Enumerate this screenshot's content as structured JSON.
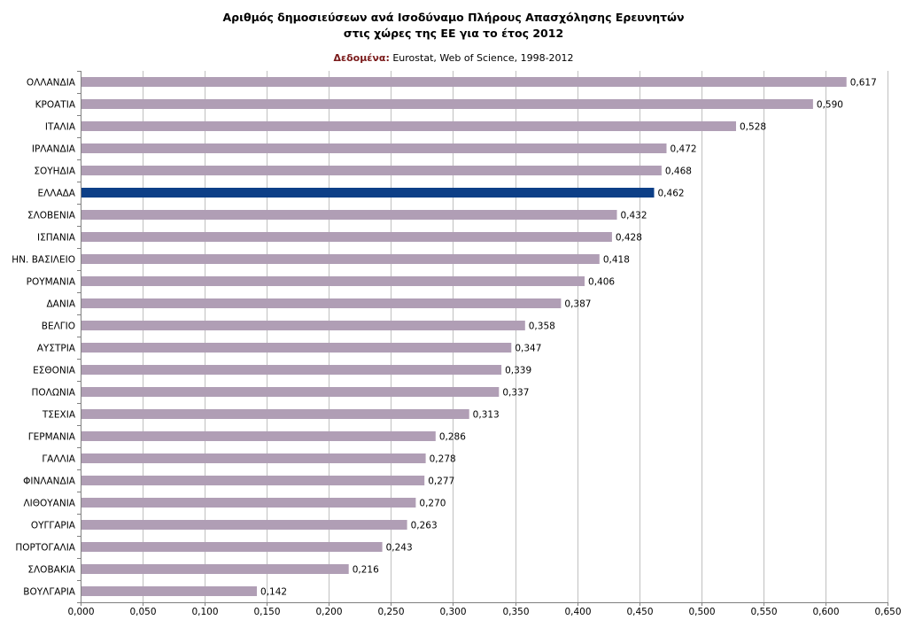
{
  "header": {
    "title_line1": "Αριθμός δημοσιεύσεων ανά Ισοδύναμο Πλήρους Απασχόλησης Ερευνητών",
    "title_line2": "στις χώρες της ΕΕ για το έτος 2012",
    "source_label": "Δεδομένα:",
    "source_text": "Eurostat, Web of Science, 1998-2012"
  },
  "chart_data": {
    "type": "bar",
    "orientation": "horizontal",
    "title": "Αριθμός δημοσιεύσεων ανά Ισοδύναμο Πλήρους Απασχόλησης Ερευνητών στις χώρες της ΕΕ για το έτος 2012",
    "subtitle": "Δεδομένα: Eurostat, Web of Science, 1998-2012",
    "categories": [
      "ΟΛΛΑΝΔΙΑ",
      "ΚΡΟΑΤΙΑ",
      "ΙΤΑΛΙΑ",
      "ΙΡΛΑΝΔΙΑ",
      "ΣΟΥΗΔΙΑ",
      "ΕΛΛΑΔΑ",
      "ΣΛΟΒΕΝΙΑ",
      "ΙΣΠΑΝΙΑ",
      "ΗΝ. ΒΑΣΙΛΕΙΟ",
      "ΡΟΥΜΑΝΙΑ",
      "ΔΑΝΙΑ",
      "ΒΕΛΓΙΟ",
      "ΑΥΣΤΡΙΑ",
      "ΕΣΘΟΝΙΑ",
      "ΠΟΛΩΝΙΑ",
      "ΤΣΕΧΙΑ",
      "ΓΕΡΜΑΝΙΑ",
      "ΓΑΛΛΙΑ",
      "ΦΙΝΛΑΝΔΙΑ",
      "ΛΙΘΟΥΑΝΙΑ",
      "ΟΥΓΓΑΡΙΑ",
      "ΠΟΡΤΟΓΑΛΙΑ",
      "ΣΛΟΒΑΚΙΑ",
      "ΒΟΥΛΓΑΡΙΑ"
    ],
    "values": [
      0.617,
      0.59,
      0.528,
      0.472,
      0.468,
      0.462,
      0.432,
      0.428,
      0.418,
      0.406,
      0.387,
      0.358,
      0.347,
      0.339,
      0.337,
      0.313,
      0.286,
      0.278,
      0.277,
      0.27,
      0.263,
      0.243,
      0.216,
      0.142
    ],
    "value_labels": [
      "0,617",
      "0,590",
      "0,528",
      "0,472",
      "0,468",
      "0,462",
      "0,432",
      "0,428",
      "0,418",
      "0,406",
      "0,387",
      "0,358",
      "0,347",
      "0,339",
      "0,337",
      "0,313",
      "0,286",
      "0,278",
      "0,277",
      "0,270",
      "0,263",
      "0,243",
      "0,216",
      "0,142"
    ],
    "highlight_category": "ΕΛΛΑΔΑ",
    "xlim": [
      0,
      0.65
    ],
    "x_ticks": [
      0,
      0.05,
      0.1,
      0.15,
      0.2,
      0.25,
      0.3,
      0.35,
      0.4,
      0.45,
      0.5,
      0.55,
      0.6,
      0.65
    ],
    "x_tick_labels": [
      "0,000",
      "0,050",
      "0,100",
      "0,150",
      "0,200",
      "0,250",
      "0,300",
      "0,350",
      "0,400",
      "0,450",
      "0,500",
      "0,550",
      "0,600",
      "0,650"
    ],
    "grid": "vertical",
    "legend": "none",
    "colors": {
      "bar": "#b09eb5",
      "highlight": "#0d3f87",
      "grid": "#c0c0c0",
      "axis": "#808080"
    }
  }
}
